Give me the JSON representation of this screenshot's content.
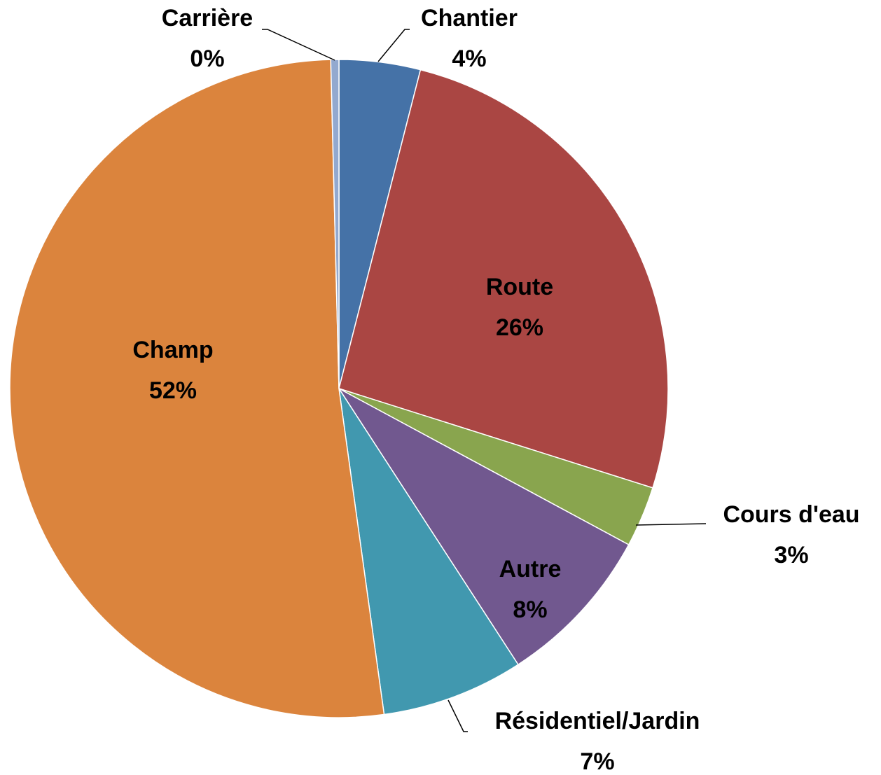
{
  "chart_data": {
    "type": "pie",
    "categories": [
      "Chantier",
      "Route",
      "Cours d'eau",
      "Autre",
      "Résidentiel/Jardin",
      "Champ",
      "Carrière"
    ],
    "values": [
      4,
      26,
      3,
      8,
      7,
      52,
      0.4
    ],
    "value_labels": [
      "4%",
      "26%",
      "3%",
      "8%",
      "7%",
      "52%",
      "0%"
    ],
    "colors": [
      "#4572a7",
      "#aa4643",
      "#89a54e",
      "#71588f",
      "#4198af",
      "#db843d",
      "#93a9cf"
    ]
  }
}
